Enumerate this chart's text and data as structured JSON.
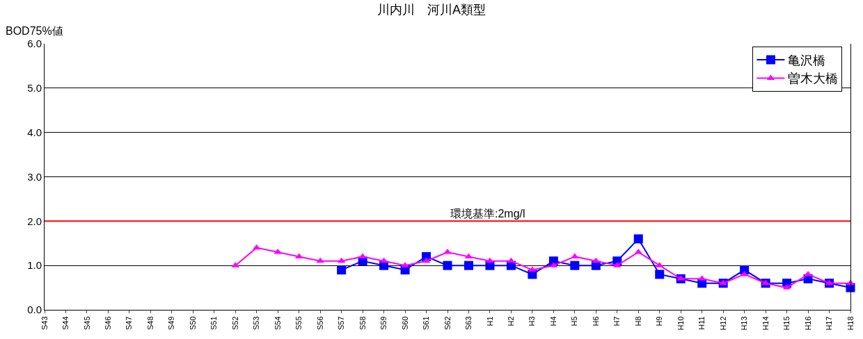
{
  "chart_data": {
    "type": "line",
    "title": "川内川　河川A類型",
    "ylabel": "BOD75%値",
    "categories": [
      "S43",
      "S44",
      "S45",
      "S46",
      "S47",
      "S48",
      "S49",
      "S50",
      "S51",
      "S52",
      "S53",
      "S54",
      "S55",
      "S56",
      "S57",
      "S58",
      "S59",
      "S60",
      "S61",
      "S62",
      "S63",
      "H1",
      "H2",
      "H3",
      "H4",
      "H5",
      "H6",
      "H7",
      "H8",
      "H9",
      "H10",
      "H11",
      "H12",
      "H13",
      "H14",
      "H15",
      "H16",
      "H17",
      "H18"
    ],
    "series": [
      {
        "name": "亀沢橋",
        "color": "#0000ff",
        "marker": "square",
        "values": [
          null,
          null,
          null,
          null,
          null,
          null,
          null,
          null,
          null,
          null,
          null,
          null,
          null,
          null,
          0.9,
          1.1,
          1.0,
          0.9,
          1.2,
          1.0,
          1.0,
          1.0,
          1.0,
          0.8,
          1.1,
          1.0,
          1.0,
          1.1,
          1.6,
          0.8,
          0.7,
          0.6,
          0.6,
          0.9,
          0.6,
          0.6,
          0.7,
          0.6,
          0.5
        ]
      },
      {
        "name": "曽木大橋",
        "color": "#ff00ff",
        "marker": "triangle",
        "values": [
          null,
          null,
          null,
          null,
          null,
          null,
          null,
          null,
          null,
          1.0,
          1.4,
          1.3,
          1.2,
          1.1,
          1.1,
          1.2,
          1.1,
          1.0,
          1.1,
          1.3,
          1.2,
          1.1,
          1.1,
          0.9,
          1.0,
          1.2,
          1.1,
          1.0,
          1.3,
          1.0,
          0.7,
          0.7,
          0.6,
          0.8,
          0.6,
          0.5,
          0.8,
          0.6,
          0.6
        ]
      }
    ],
    "ylim": [
      0,
      6
    ],
    "yticks": [
      {
        "value": 0,
        "label": "0.0"
      },
      {
        "value": 1,
        "label": "1.0"
      },
      {
        "value": 2,
        "label": "2.0"
      },
      {
        "value": 3,
        "label": "3.0"
      },
      {
        "value": 4,
        "label": "4.0"
      },
      {
        "value": 5,
        "label": "5.0"
      },
      {
        "value": 6,
        "label": "6.0"
      }
    ],
    "grid": "y",
    "legend": "top right",
    "ref_lines": [
      {
        "axis": "y",
        "value": 2,
        "label": "環境基準:2mg/l",
        "color": "#ff0000"
      }
    ]
  }
}
